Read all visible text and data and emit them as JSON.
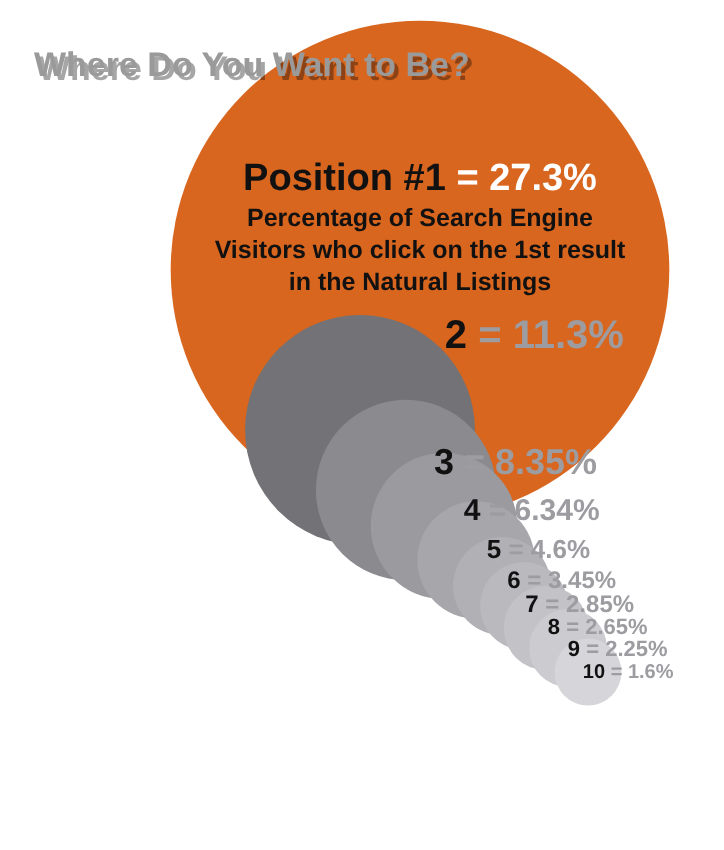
{
  "chart_data": {
    "type": "other",
    "title": "Where Do You Want to Be?",
    "categories": [
      "Position #1",
      "2",
      "3",
      "4",
      "5",
      "6",
      "7",
      "8",
      "9",
      "10"
    ],
    "values": [
      27.3,
      11.3,
      8.35,
      6.34,
      4.6,
      3.45,
      2.85,
      2.65,
      2.25,
      1.6
    ],
    "value_labels": [
      "= 27.3%",
      "= 11.3%",
      "= 8.35%",
      "= 6.34%",
      "= 4.6%",
      "= 3.45%",
      "= 2.85%",
      "= 2.65%",
      "= 2.25%",
      "= 1.6%"
    ],
    "colors": [
      "#d8661f",
      "#727277",
      "#8a8a8f",
      "#9a9a9f",
      "#a6a6ab",
      "#b0b0b5",
      "#b9b9be",
      "#c2c2c7",
      "#cbcbd0",
      "#d6d6da"
    ],
    "annotations": [
      "Percentage of Search Engine Visitors who click on the 1st result in the Natural Listings"
    ]
  }
}
